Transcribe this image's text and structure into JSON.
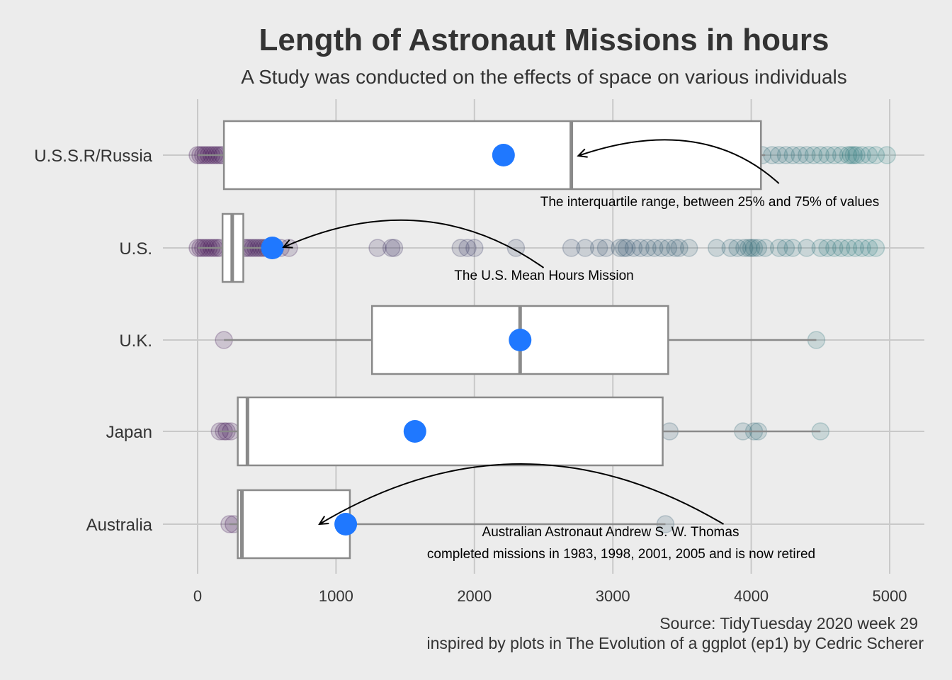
{
  "chart_data": {
    "type": "boxplot",
    "title": "Length of Astronaut Missions in hours",
    "subtitle": "A Study was conducted on the effects of space on various individuals",
    "caption_lines": [
      "Source: TidyTuesday 2020 week 29",
      "inspired by plots in The Evolution of a ggplot (ep1) by Cedric Scherer"
    ],
    "xlabel": "",
    "ylabel": "",
    "xlim": [
      -120,
      5250
    ],
    "x_ticks": [
      0,
      1000,
      2000,
      3000,
      4000,
      5000
    ],
    "grid": true,
    "orientation": "horizontal",
    "colors": {
      "background": "#ececec",
      "grid": "#c9c9c9",
      "box_fill": "#ffffff",
      "box_stroke": "#8a8a8a",
      "mean_point": "#1f78ff",
      "jitter_low": "#3d0a4f",
      "jitter_high": "#2a7f7f"
    },
    "categories": [
      "U.S.S.R/Russia",
      "U.S.",
      "U.K.",
      "Japan",
      "Australia"
    ],
    "series": [
      {
        "category": "U.S.S.R/Russia",
        "q1": 190,
        "median": 2700,
        "q3": 4070,
        "mean": 2210,
        "whisker_low": 0,
        "whisker_high": 4100,
        "points": [
          0,
          20,
          40,
          60,
          80,
          100,
          120,
          140,
          160,
          180,
          4080,
          4150,
          4200,
          4250,
          4300,
          4350,
          4400,
          4450,
          4500,
          4550,
          4600,
          4650,
          4700,
          4720,
          4740,
          4760,
          4800,
          4850,
          4900,
          4980
        ]
      },
      {
        "category": "U.S.",
        "q1": 180,
        "median": 250,
        "q3": 330,
        "mean": 540,
        "whisker_low": 0,
        "whisker_high": 600,
        "points": [
          0,
          20,
          40,
          60,
          80,
          100,
          120,
          140,
          160,
          340,
          360,
          380,
          400,
          420,
          440,
          460,
          480,
          500,
          520,
          560,
          600,
          660,
          1300,
          1400,
          1420,
          1900,
          1950,
          2000,
          2300,
          2700,
          2800,
          2900,
          2950,
          3050,
          3080,
          3100,
          3150,
          3200,
          3250,
          3300,
          3350,
          3400,
          3450,
          3480,
          3550,
          3750,
          3850,
          3900,
          3950,
          3980,
          4000,
          4020,
          4050,
          4100,
          4200,
          4250,
          4300,
          4400,
          4500,
          4550,
          4600,
          4650,
          4700,
          4750,
          4800,
          4850,
          4900
        ]
      },
      {
        "category": "U.K.",
        "q1": 1260,
        "median": 2330,
        "q3": 3400,
        "mean": 2330,
        "whisker_low": 190,
        "whisker_high": 4470,
        "points": [
          190,
          4470
        ]
      },
      {
        "category": "Japan",
        "q1": 290,
        "median": 360,
        "q3": 3360,
        "mean": 1570,
        "whisker_low": 160,
        "whisker_high": 4500,
        "points": [
          160,
          190,
          210,
          240,
          3410,
          3940,
          4020,
          4050,
          4500
        ]
      },
      {
        "category": "Australia",
        "q1": 290,
        "median": 320,
        "q3": 1100,
        "mean": 1070,
        "whisker_low": 230,
        "whisker_high": 3380,
        "points": [
          230,
          260,
          3380
        ]
      }
    ],
    "annotations": [
      {
        "text": "The interquartile range, between 25% and 75% of values",
        "category": "U.S.S.R/Russia",
        "arrow_from_x": 4200,
        "arrow_to_x": 2750
      },
      {
        "text": "The U.S. Mean Hours Mission",
        "category": "U.S.",
        "arrow_from_x": 2500,
        "arrow_to_x": 620
      },
      {
        "text": "Australian Astronaut Andrew S. W. Thomas",
        "category": "Australia",
        "arrow_from_x": 3800,
        "arrow_to_x": 880
      },
      {
        "text": "completed missions in 1983, 1998, 2001, 2005 and is now retired",
        "category": "Australia"
      }
    ]
  }
}
